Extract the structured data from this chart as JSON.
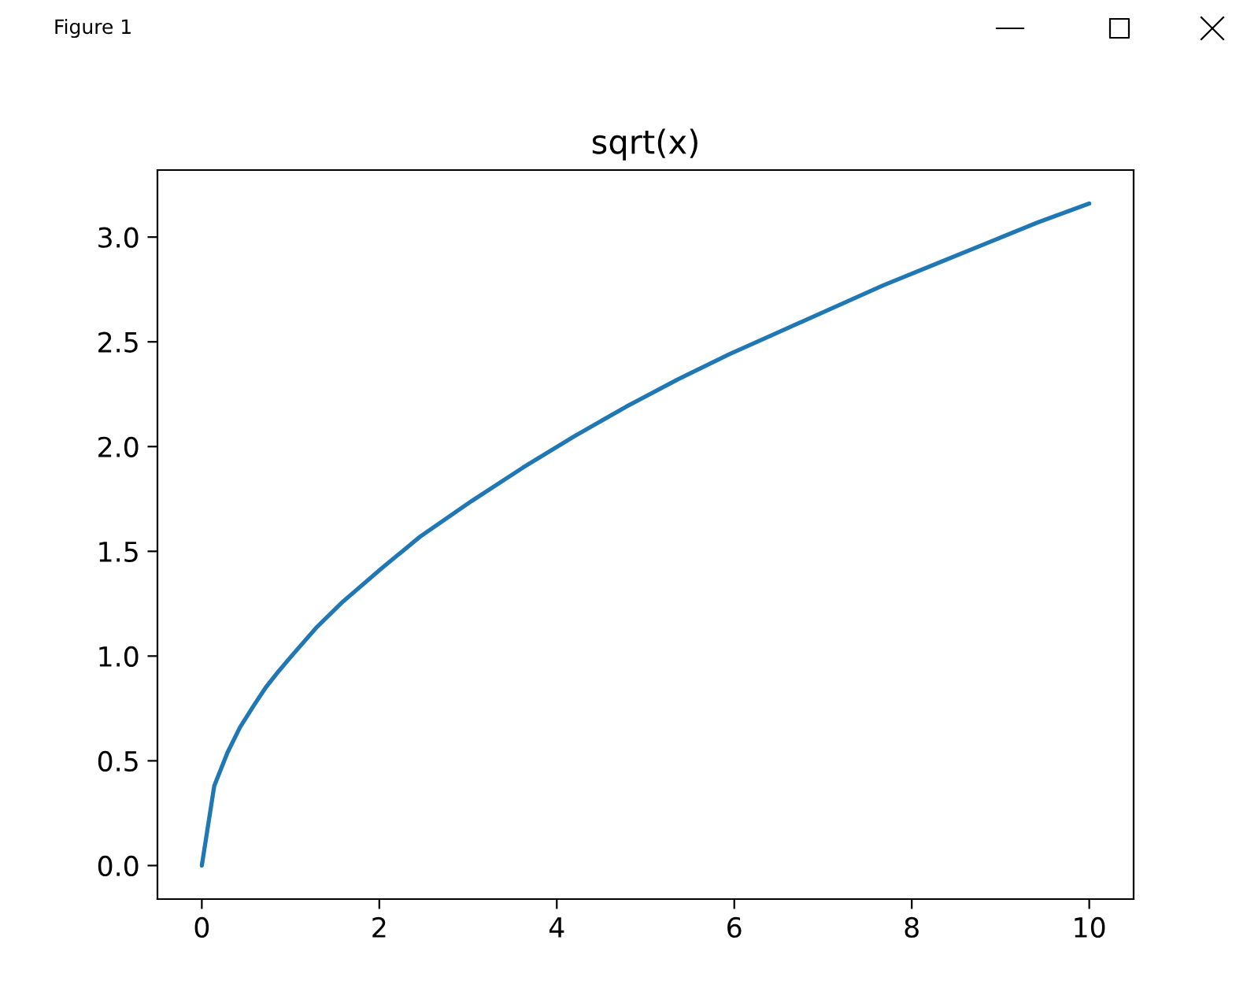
{
  "chart_data": {
    "type": "line",
    "title": "sqrt(x)",
    "annotations": [
      "Figure 1"
    ],
    "x": [
      0,
      0.14,
      0.29,
      0.43,
      0.58,
      0.72,
      0.87,
      1.01,
      1.3,
      1.59,
      2.03,
      2.46,
      3.04,
      3.62,
      4.2,
      4.78,
      5.36,
      5.94,
      6.52,
      7.1,
      7.68,
      8.26,
      8.84,
      9.42,
      10
    ],
    "series": [
      {
        "color": "#1f77b4",
        "values": [
          0,
          0.38,
          0.54,
          0.66,
          0.76,
          0.85,
          0.93,
          1.0,
          1.14,
          1.26,
          1.42,
          1.57,
          1.74,
          1.9,
          2.05,
          2.19,
          2.32,
          2.44,
          2.55,
          2.66,
          2.77,
          2.87,
          2.97,
          3.07,
          3.16
        ]
      }
    ],
    "xlim": [
      -0.5,
      10.5
    ],
    "ylim": [
      -0.16,
      3.32
    ],
    "xticks": [
      0,
      2,
      4,
      6,
      8,
      10
    ],
    "yticks": [
      {
        "value": 0,
        "label": "0.0"
      },
      {
        "value": 0.5,
        "label": "0.5"
      },
      {
        "value": 1,
        "label": "1.0"
      },
      {
        "value": 1.5,
        "label": "1.5"
      },
      {
        "value": 2,
        "label": "2.0"
      },
      {
        "value": 2.5,
        "label": "2.5"
      },
      {
        "value": 3,
        "label": "3.0"
      }
    ],
    "line_style": "solid"
  }
}
